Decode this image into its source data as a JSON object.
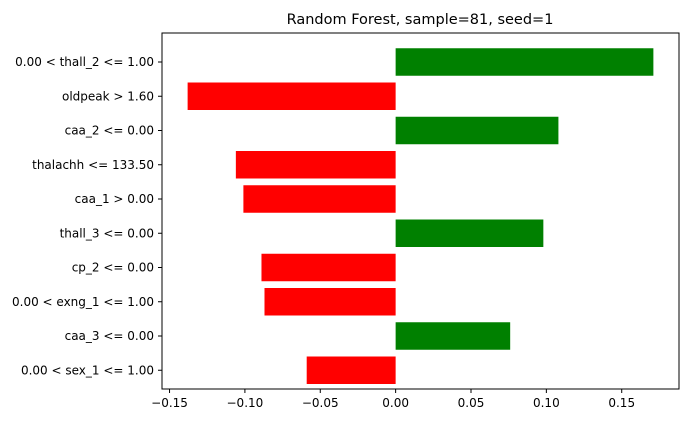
{
  "chart_data": {
    "type": "bar",
    "orientation": "horizontal",
    "title": "Random Forest, sample=81, seed=1",
    "xlabel": "",
    "ylabel": "",
    "categories": [
      "0.00 < thall_2 <= 1.00",
      "oldpeak > 1.60",
      "caa_2 <= 0.00",
      "thalachh <= 133.50",
      "caa_1 > 0.00",
      "thall_3 <= 0.00",
      "cp_2 <= 0.00",
      "0.00 < exng_1 <= 1.00",
      "caa_3 <= 0.00",
      "0.00 < sex_1 <= 1.00"
    ],
    "values": [
      0.171,
      -0.138,
      0.108,
      -0.106,
      -0.101,
      0.098,
      -0.089,
      -0.087,
      0.076,
      -0.059
    ],
    "xlim": [
      -0.155,
      0.188
    ],
    "xticks": [
      -0.15,
      -0.1,
      -0.05,
      0.0,
      0.05,
      0.1,
      0.15
    ],
    "xtick_labels": [
      "−0.15",
      "−0.10",
      "−0.05",
      "0.00",
      "0.05",
      "0.10",
      "0.15"
    ],
    "positive_color": "#008000",
    "negative_color": "#ff0000",
    "grid": false,
    "legend": "none"
  }
}
